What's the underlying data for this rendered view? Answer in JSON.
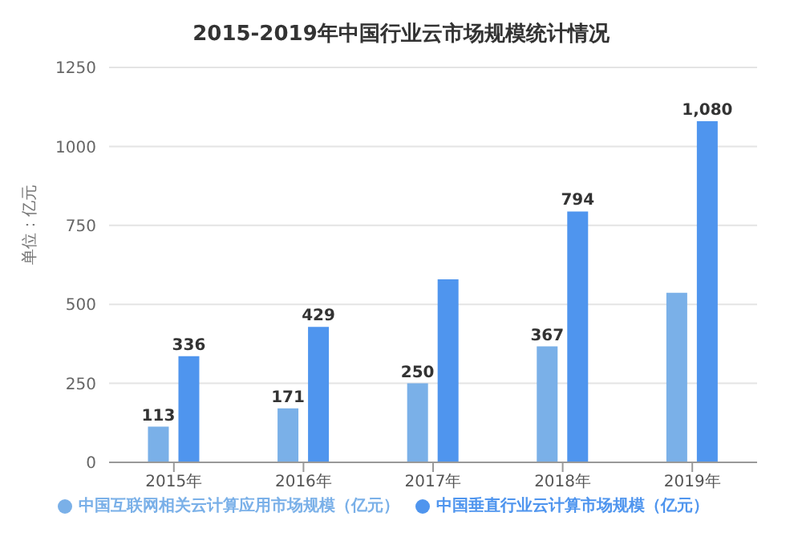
{
  "chart_data": {
    "type": "bar",
    "title": "2015-2019年中国行业云市场规模统计情况",
    "ylabel": "单位：亿元",
    "categories": [
      "2015年",
      "2016年",
      "2017年",
      "2018年",
      "2019年"
    ],
    "series": [
      {
        "name": "中国互联网相关云计算应用市场规模（亿元）",
        "color": "#7ab0e8",
        "values": [
          113,
          171,
          250,
          367,
          537
        ],
        "value_labels": [
          "113",
          "171",
          "250",
          "367",
          null
        ]
      },
      {
        "name": "中国垂直行业云计算市场规模（亿元）",
        "color": "#4f95ee",
        "values": [
          336,
          429,
          579,
          794,
          1080
        ],
        "value_labels": [
          "336",
          "429",
          null,
          "794",
          "1,080"
        ]
      }
    ],
    "ylim": [
      0,
      1250
    ],
    "yticks": [
      0,
      250,
      500,
      750,
      1000,
      1250
    ],
    "grid": "y",
    "legend": "bottom"
  }
}
